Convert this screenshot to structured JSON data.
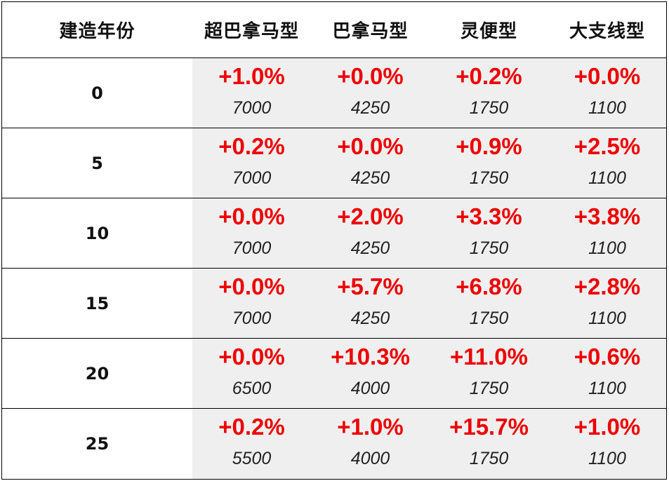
{
  "header": {
    "year_label": "建造年份",
    "types": [
      "超巴拿马型",
      "巴拿马型",
      "灵便型",
      "大支线型"
    ]
  },
  "rows": [
    {
      "year": "0",
      "cells": [
        {
          "pct": "+1.0%",
          "num": "7000"
        },
        {
          "pct": "+0.0%",
          "num": "4250"
        },
        {
          "pct": "+0.2%",
          "num": "1750"
        },
        {
          "pct": "+0.0%",
          "num": "1100"
        }
      ]
    },
    {
      "year": "5",
      "cells": [
        {
          "pct": "+0.2%",
          "num": "7000"
        },
        {
          "pct": "+0.0%",
          "num": "4250"
        },
        {
          "pct": "+0.9%",
          "num": "1750"
        },
        {
          "pct": "+2.5%",
          "num": "1100"
        }
      ]
    },
    {
      "year": "10",
      "cells": [
        {
          "pct": "+0.0%",
          "num": "7000"
        },
        {
          "pct": "+2.0%",
          "num": "4250"
        },
        {
          "pct": "+3.3%",
          "num": "1750"
        },
        {
          "pct": "+3.8%",
          "num": "1100"
        }
      ]
    },
    {
      "year": "15",
      "cells": [
        {
          "pct": "+0.0%",
          "num": "7000"
        },
        {
          "pct": "+5.7%",
          "num": "4250"
        },
        {
          "pct": "+6.8%",
          "num": "1750"
        },
        {
          "pct": "+2.8%",
          "num": "1100"
        }
      ]
    },
    {
      "year": "20",
      "cells": [
        {
          "pct": "+0.0%",
          "num": "6500"
        },
        {
          "pct": "+10.3%",
          "num": "4000"
        },
        {
          "pct": "+11.0%",
          "num": "1750"
        },
        {
          "pct": "+0.6%",
          "num": "1100"
        }
      ]
    },
    {
      "year": "25",
      "cells": [
        {
          "pct": "+0.2%",
          "num": "5500"
        },
        {
          "pct": "+1.0%",
          "num": "4000"
        },
        {
          "pct": "+15.7%",
          "num": "1750"
        },
        {
          "pct": "+1.0%",
          "num": "1100"
        }
      ]
    }
  ],
  "colors": {
    "pct_text": "#ee0000",
    "value_bg": "#efefef"
  }
}
